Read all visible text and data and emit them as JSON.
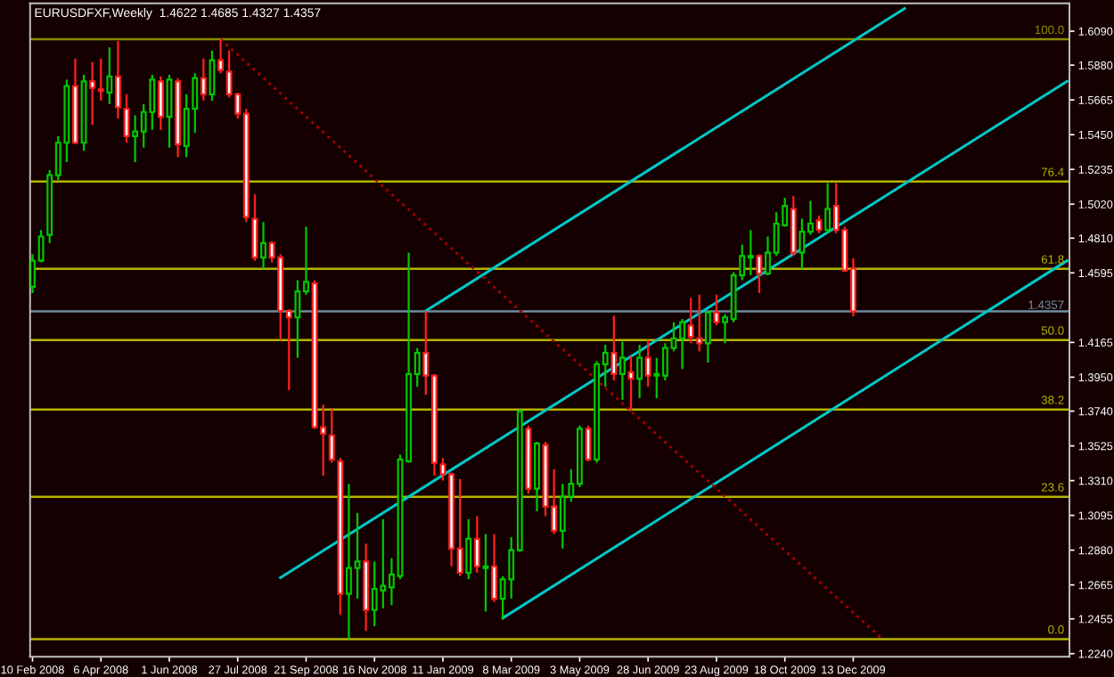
{
  "chart_data": {
    "type": "candlestick",
    "title": "EURUSDFXF,Weekly  1.4622 1.4685 1.4327 1.4357",
    "xlim": [
      "2008-02-08",
      "2010-06-08"
    ],
    "xticks": [
      {
        "value": "2008-02-10",
        "label": "10 Feb 2008"
      },
      {
        "value": "2008-04-06",
        "label": "6 Apr 2008"
      },
      {
        "value": "2008-06-01",
        "label": "1 Jun 2008"
      },
      {
        "value": "2008-07-27",
        "label": "27 Jul 2008"
      },
      {
        "value": "2008-09-21",
        "label": "21 Sep 2008"
      },
      {
        "value": "2008-11-16",
        "label": "16 Nov 2008"
      },
      {
        "value": "2009-01-11",
        "label": "11 Jan 2009"
      },
      {
        "value": "2009-03-08",
        "label": "8 Mar 2009"
      },
      {
        "value": "2009-05-03",
        "label": "3 May 2009"
      },
      {
        "value": "2009-06-28",
        "label": "28 Jun 2009"
      },
      {
        "value": "2009-08-23",
        "label": "23 Aug 2009"
      },
      {
        "value": "2009-10-18",
        "label": "18 Oct 2009"
      },
      {
        "value": "2009-12-13",
        "label": "13 Dec 2009"
      }
    ],
    "ylim": [
      1.2221,
      1.6262
    ],
    "yticks": [
      {
        "value": 1.609,
        "label": "1.6090"
      },
      {
        "value": 1.588,
        "label": "1.5880"
      },
      {
        "value": 1.5665,
        "label": "1.5665"
      },
      {
        "value": 1.545,
        "label": "1.5450"
      },
      {
        "value": 1.5235,
        "label": "1.5235"
      },
      {
        "value": 1.502,
        "label": "1.5020"
      },
      {
        "value": 1.481,
        "label": "1.4810"
      },
      {
        "value": 1.4595,
        "label": "1.4595"
      },
      {
        "value": 1.4165,
        "label": "1.4165"
      },
      {
        "value": 1.395,
        "label": "1.3950"
      },
      {
        "value": 1.374,
        "label": "1.3740"
      },
      {
        "value": 1.3525,
        "label": "1.3525"
      },
      {
        "value": 1.331,
        "label": "1.3310"
      },
      {
        "value": 1.3095,
        "label": "1.3095"
      },
      {
        "value": 1.288,
        "label": "1.2880"
      },
      {
        "value": 1.2665,
        "label": "1.2665"
      },
      {
        "value": 1.2455,
        "label": "1.2455"
      },
      {
        "value": 1.224,
        "label": "1.2240"
      }
    ],
    "ref_lines": [
      {
        "axis": "y",
        "value": 1.604,
        "color": "#8c8c00"
      },
      {
        "axis": "y",
        "value": 1.516,
        "color": "#b4b400"
      },
      {
        "axis": "y",
        "value": 1.462,
        "color": "#b4b400"
      },
      {
        "axis": "y",
        "value": 1.418,
        "color": "#b4b400"
      },
      {
        "axis": "y",
        "value": 1.375,
        "color": "#b4b400"
      },
      {
        "axis": "y",
        "value": 1.321,
        "color": "#b4b400"
      },
      {
        "axis": "y",
        "value": 1.233,
        "color": "#b4b400"
      },
      {
        "axis": "y",
        "value": 1.4357,
        "label": "1.4357",
        "color": "#6e8ca0"
      }
    ],
    "annotations": [
      "100.0",
      "76.4",
      "61.8",
      "50.0",
      "38.2",
      "23.6",
      "0.0"
    ],
    "series": [
      {
        "type": "line",
        "color": "#00c8c8",
        "line_style": "solid",
        "x": [
          "2008-08-31",
          "2010-06-06"
        ],
        "values": [
          1.271,
          1.578
        ]
      },
      {
        "type": "line",
        "color": "#00c8c8",
        "line_style": "solid",
        "x": [
          "2008-12-28",
          "2010-01-24"
        ],
        "values": [
          1.436,
          1.623
        ]
      },
      {
        "type": "line",
        "color": "#00c8c8",
        "line_style": "solid",
        "x": [
          "2009-03-01",
          "2010-06-06"
        ],
        "values": [
          1.246,
          1.467
        ]
      },
      {
        "type": "line",
        "color": "#a00000",
        "line_style": "dotted",
        "x": [
          "2008-07-13",
          "2010-01-06"
        ],
        "values": [
          1.604,
          1.233
        ]
      }
    ],
    "colors": [
      "#00c800",
      "#00c800",
      "#00c800",
      "#00c800",
      "#00c800",
      "#ff2020",
      "#00c800",
      "#ff2020",
      "#ff2020",
      "#00c800",
      "#ff2020",
      "#ff2020",
      "#00c800",
      "#00c800",
      "#00c800",
      "#ff2020",
      "#00c800",
      "#ff2020",
      "#00c800",
      "#00c800",
      "#ff2020",
      "#00c800",
      "#ff2020",
      "#ff2020",
      "#ff2020",
      "#ff2020",
      "#ff2020",
      "#00c800",
      "#ff2020",
      "#ff2020",
      "#ff2020",
      "#00c800",
      "#00c800",
      "#ff2020",
      "#ff2020",
      "#ff2020",
      "#ff2020",
      "#00c800",
      "#00c800",
      "#ff2020",
      "#00c800",
      "#00c800",
      "#00c800",
      "#00c800",
      "#00c800",
      "#00c800",
      "#ff2020",
      "#ff2020",
      "#ff2020",
      "#ff2020",
      "#ff2020",
      "#00c800",
      "#ff2020",
      "#00c800",
      "#ff2020",
      "#00c800",
      "#00c800",
      "#00c800",
      "#ff2020",
      "#00c800",
      "#ff2020",
      "#ff2020",
      "#00c800",
      "#00c800",
      "#00c800",
      "#ff2020",
      "#00c800",
      "#00c800",
      "#ff2020",
      "#00c800",
      "#ff2020",
      "#00c800",
      "#ff2020",
      "#00c800",
      "#00c800",
      "#00c800",
      "#00c800",
      "#ff2020",
      "#ff2020",
      "#00c800",
      "#ff2020",
      "#00c800",
      "#00c800",
      "#00c800",
      "#00c800",
      "#ff2020",
      "#00c800",
      "#00c800",
      "#00c800",
      "#ff2020",
      "#00c800",
      "#00c800",
      "#ff2020",
      "#00c800",
      "#ff2020",
      "#ff2020",
      "#ff2020"
    ],
    "x": [
      "2008-02-10",
      "2008-02-17",
      "2008-02-24",
      "2008-03-02",
      "2008-03-09",
      "2008-03-16",
      "2008-03-23",
      "2008-03-30",
      "2008-04-06",
      "2008-04-13",
      "2008-04-20",
      "2008-04-27",
      "2008-05-04",
      "2008-05-11",
      "2008-05-18",
      "2008-05-25",
      "2008-06-01",
      "2008-06-08",
      "2008-06-15",
      "2008-06-22",
      "2008-06-29",
      "2008-07-06",
      "2008-07-13",
      "2008-07-20",
      "2008-07-27",
      "2008-08-03",
      "2008-08-10",
      "2008-08-17",
      "2008-08-24",
      "2008-08-31",
      "2008-09-07",
      "2008-09-14",
      "2008-09-21",
      "2008-09-28",
      "2008-10-05",
      "2008-10-12",
      "2008-10-19",
      "2008-10-26",
      "2008-11-02",
      "2008-11-09",
      "2008-11-16",
      "2008-11-23",
      "2008-11-30",
      "2008-12-07",
      "2008-12-14",
      "2008-12-21",
      "2008-12-28",
      "2009-01-04",
      "2009-01-11",
      "2009-01-18",
      "2009-01-25",
      "2009-02-01",
      "2009-02-08",
      "2009-02-15",
      "2009-02-22",
      "2009-03-01",
      "2009-03-08",
      "2009-03-15",
      "2009-03-22",
      "2009-03-29",
      "2009-04-05",
      "2009-04-12",
      "2009-04-19",
      "2009-04-26",
      "2009-05-03",
      "2009-05-10",
      "2009-05-17",
      "2009-05-24",
      "2009-05-31",
      "2009-06-07",
      "2009-06-14",
      "2009-06-21",
      "2009-06-28",
      "2009-07-05",
      "2009-07-12",
      "2009-07-19",
      "2009-07-26",
      "2009-08-02",
      "2009-08-09",
      "2009-08-16",
      "2009-08-23",
      "2009-08-30",
      "2009-09-06",
      "2009-09-13",
      "2009-09-20",
      "2009-09-27",
      "2009-10-04",
      "2009-10-11",
      "2009-10-18",
      "2009-10-25",
      "2009-11-01",
      "2009-11-08",
      "2009-11-15",
      "2009-11-22",
      "2009-11-29",
      "2009-12-06",
      "2009-12-13"
    ],
    "ohlc": [
      [
        1.451,
        1.471,
        1.447,
        1.467
      ],
      [
        1.467,
        1.486,
        1.466,
        1.482
      ],
      [
        1.483,
        1.523,
        1.478,
        1.52
      ],
      [
        1.52,
        1.544,
        1.517,
        1.54
      ],
      [
        1.54,
        1.579,
        1.528,
        1.575
      ],
      [
        1.575,
        1.592,
        1.539,
        1.54
      ],
      [
        1.54,
        1.582,
        1.535,
        1.578
      ],
      [
        1.578,
        1.59,
        1.551,
        1.574
      ],
      [
        1.573,
        1.592,
        1.566,
        1.572
      ],
      [
        1.571,
        1.599,
        1.564,
        1.581
      ],
      [
        1.581,
        1.603,
        1.555,
        1.562
      ],
      [
        1.561,
        1.57,
        1.54,
        1.544
      ],
      [
        1.544,
        1.557,
        1.528,
        1.547
      ],
      [
        1.547,
        1.564,
        1.537,
        1.559
      ],
      [
        1.559,
        1.582,
        1.548,
        1.579
      ],
      [
        1.578,
        1.581,
        1.548,
        1.556
      ],
      [
        1.556,
        1.582,
        1.537,
        1.579
      ],
      [
        1.578,
        1.58,
        1.531,
        1.539
      ],
      [
        1.538,
        1.57,
        1.531,
        1.561
      ],
      [
        1.561,
        1.583,
        1.546,
        1.58
      ],
      [
        1.58,
        1.592,
        1.566,
        1.57
      ],
      [
        1.57,
        1.597,
        1.566,
        1.591
      ],
      [
        1.591,
        1.604,
        1.583,
        1.585
      ],
      [
        1.584,
        1.597,
        1.568,
        1.57
      ],
      [
        1.57,
        1.571,
        1.555,
        1.558
      ],
      [
        1.558,
        1.561,
        1.491,
        1.494
      ],
      [
        1.493,
        1.508,
        1.467,
        1.469
      ],
      [
        1.469,
        1.491,
        1.462,
        1.478
      ],
      [
        1.478,
        1.479,
        1.466,
        1.469
      ],
      [
        1.469,
        1.471,
        1.418,
        1.436
      ],
      [
        1.436,
        1.437,
        1.387,
        1.432
      ],
      [
        1.432,
        1.455,
        1.407,
        1.448
      ],
      [
        1.448,
        1.488,
        1.446,
        1.454
      ],
      [
        1.453,
        1.455,
        1.363,
        1.364
      ],
      [
        1.364,
        1.378,
        1.334,
        1.36
      ],
      [
        1.359,
        1.376,
        1.342,
        1.344
      ],
      [
        1.343,
        1.345,
        1.248,
        1.261
      ],
      [
        1.261,
        1.329,
        1.233,
        1.277
      ],
      [
        1.277,
        1.311,
        1.258,
        1.281
      ],
      [
        1.281,
        1.292,
        1.238,
        1.251
      ],
      [
        1.251,
        1.281,
        1.241,
        1.264
      ],
      [
        1.263,
        1.307,
        1.252,
        1.266
      ],
      [
        1.265,
        1.283,
        1.254,
        1.273
      ],
      [
        1.272,
        1.347,
        1.27,
        1.344
      ],
      [
        1.343,
        1.472,
        1.342,
        1.397
      ],
      [
        1.397,
        1.413,
        1.389,
        1.41
      ],
      [
        1.41,
        1.436,
        1.384,
        1.396
      ],
      [
        1.396,
        1.397,
        1.334,
        1.342
      ],
      [
        1.341,
        1.345,
        1.331,
        1.335
      ],
      [
        1.335,
        1.336,
        1.278,
        1.289
      ],
      [
        1.289,
        1.332,
        1.272,
        1.274
      ],
      [
        1.274,
        1.307,
        1.27,
        1.295
      ],
      [
        1.295,
        1.309,
        1.274,
        1.278
      ],
      [
        1.277,
        1.298,
        1.25,
        1.278
      ],
      [
        1.278,
        1.298,
        1.256,
        1.258
      ],
      [
        1.258,
        1.272,
        1.245,
        1.27
      ],
      [
        1.27,
        1.296,
        1.258,
        1.288
      ],
      [
        1.288,
        1.375,
        1.287,
        1.374
      ],
      [
        1.363,
        1.365,
        1.323,
        1.326
      ],
      [
        1.326,
        1.355,
        1.312,
        1.354
      ],
      [
        1.353,
        1.355,
        1.309,
        1.315
      ],
      [
        1.315,
        1.338,
        1.298,
        1.3
      ],
      [
        1.3,
        1.329,
        1.289,
        1.321
      ],
      [
        1.321,
        1.338,
        1.318,
        1.329
      ],
      [
        1.329,
        1.365,
        1.327,
        1.363
      ],
      [
        1.363,
        1.365,
        1.343,
        1.344
      ],
      [
        1.344,
        1.405,
        1.342,
        1.403
      ],
      [
        1.403,
        1.415,
        1.389,
        1.41
      ],
      [
        1.41,
        1.433,
        1.393,
        1.397
      ],
      [
        1.397,
        1.417,
        1.381,
        1.407
      ],
      [
        1.398,
        1.408,
        1.374,
        1.394
      ],
      [
        1.394,
        1.415,
        1.382,
        1.407
      ],
      [
        1.407,
        1.418,
        1.389,
        1.396
      ],
      [
        1.396,
        1.407,
        1.382,
        1.397
      ],
      [
        1.396,
        1.416,
        1.393,
        1.413
      ],
      [
        1.413,
        1.429,
        1.411,
        1.419
      ],
      [
        1.419,
        1.431,
        1.4,
        1.429
      ],
      [
        1.427,
        1.444,
        1.416,
        1.42
      ],
      [
        1.419,
        1.446,
        1.411,
        1.416
      ],
      [
        1.416,
        1.436,
        1.404,
        1.435
      ],
      [
        1.435,
        1.446,
        1.427,
        1.429
      ],
      [
        1.429,
        1.434,
        1.416,
        1.432
      ],
      [
        1.431,
        1.46,
        1.429,
        1.458
      ],
      [
        1.458,
        1.477,
        1.455,
        1.47
      ],
      [
        1.469,
        1.486,
        1.458,
        1.47
      ],
      [
        1.47,
        1.471,
        1.447,
        1.459
      ],
      [
        1.459,
        1.482,
        1.458,
        1.472
      ],
      [
        1.472,
        1.497,
        1.47,
        1.49
      ],
      [
        1.489,
        1.506,
        1.488,
        1.501
      ],
      [
        1.499,
        1.507,
        1.47,
        1.472
      ],
      [
        1.472,
        1.493,
        1.462,
        1.485
      ],
      [
        1.485,
        1.504,
        1.483,
        1.49
      ],
      [
        1.492,
        1.495,
        1.484,
        1.486
      ],
      [
        1.486,
        1.515,
        1.484,
        1.499
      ],
      [
        1.501,
        1.515,
        1.484,
        1.486
      ],
      [
        1.486,
        1.488,
        1.46,
        1.461
      ],
      [
        1.4622,
        1.4685,
        1.4327,
        1.4357
      ]
    ]
  }
}
